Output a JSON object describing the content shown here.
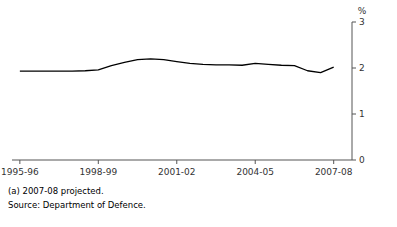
{
  "chart_data": {
    "type": "line",
    "y_label": "%",
    "annotations": [
      "(a) 2007-08 projected.",
      "Source: Department of Defence."
    ],
    "x": [
      1995.5,
      1996.0,
      1996.5,
      1997.0,
      1997.5,
      1998.0,
      1998.5,
      1999.0,
      1999.5,
      2000.0,
      2000.5,
      2001.0,
      2001.5,
      2002.0,
      2002.5,
      2003.0,
      2003.5,
      2004.0,
      2004.5,
      2005.0,
      2005.5,
      2006.0,
      2006.5,
      2007.0,
      2007.5
    ],
    "values": [
      1.93,
      1.93,
      1.93,
      1.93,
      1.93,
      1.94,
      1.96,
      2.05,
      2.12,
      2.18,
      2.2,
      2.18,
      2.14,
      2.1,
      2.08,
      2.07,
      2.07,
      2.06,
      2.1,
      2.08,
      2.06,
      2.05,
      1.94,
      1.9,
      2.02
    ],
    "color": "#000000",
    "xlim": [
      1995.2,
      2008.2
    ],
    "xticks": [
      {
        "value": 1995.5,
        "label": "1995-96"
      },
      {
        "value": 1998.5,
        "label": "1998-99"
      },
      {
        "value": 2001.5,
        "label": "2001-02"
      },
      {
        "value": 2004.5,
        "label": "2004-05"
      },
      {
        "value": 2007.5,
        "label": "2007-08"
      }
    ],
    "ylim": [
      0,
      3
    ],
    "yticks": [
      0,
      1,
      2,
      3
    ],
    "grid": false
  }
}
